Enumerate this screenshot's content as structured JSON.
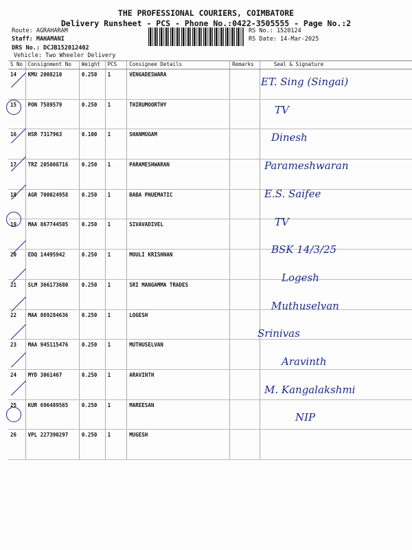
{
  "header": {
    "company": "THE PROFESSIONAL COURIERS, COIMBATORE",
    "subtitle": "Delivery Runsheet - PCS - Phone No.:0422-3505555 - Page No.:2",
    "route": "Route: AGRAHARAM",
    "staff": "Staff: MAHAMANI",
    "drs": "DRS No.: DCJB152012402",
    "vehicle": "Vehicle: Two Wheeler Delivery",
    "rs_no": "RS No.: 1520124",
    "rs_date": "RS Date: 14-Mar-2025"
  },
  "columns": [
    "S No",
    "Consignment No",
    "Weight",
    "PCS",
    "Consignee Details",
    "Remarks",
    "Seal & Signature"
  ],
  "rows": [
    {
      "sno": "14",
      "cn": "KMU 2008210",
      "wt": "0.250",
      "pcs": "1",
      "name": "VENGADESWARA",
      "sig": "ET. Sing (Singai)"
    },
    {
      "sno": "15",
      "cn": "PON 7589579",
      "wt": "0.250",
      "pcs": "1",
      "name": "THIRUMOORTHY",
      "sig": "TV"
    },
    {
      "sno": "16",
      "cn": "HSR 7317963",
      "wt": "0.100",
      "pcs": "1",
      "name": "SHANMUGAM",
      "sig": "Dinesh"
    },
    {
      "sno": "17",
      "cn": "TRZ 205008716",
      "wt": "0.250",
      "pcs": "1",
      "name": "PARAMESHWARAN",
      "sig": "Parameshwaran"
    },
    {
      "sno": "18",
      "cn": "AGR 700024958",
      "wt": "0.250",
      "pcs": "1",
      "name": "BABA PNUEMATIC",
      "sig": "E.S. Saifee"
    },
    {
      "sno": "19",
      "cn": "MAA 867744505",
      "wt": "0.250",
      "pcs": "1",
      "name": "SIVAVADIVEL",
      "sig": "TV"
    },
    {
      "sno": "20",
      "cn": "EDQ 14495942",
      "wt": "0.250",
      "pcs": "1",
      "name": "MOULI KRISHNAN",
      "sig": "BSK 14/3/25"
    },
    {
      "sno": "21",
      "cn": "SLM 366173680",
      "wt": "0.250",
      "pcs": "1",
      "name": "SRI MANGAMMA TRADES",
      "sig": "Logesh"
    },
    {
      "sno": "22",
      "cn": "MAA 869284636",
      "wt": "0.250",
      "pcs": "1",
      "name": "LOGESH",
      "sig": "Muthuselvan"
    },
    {
      "sno": "23",
      "cn": "MAA 945115476",
      "wt": "0.250",
      "pcs": "1",
      "name": "MUTHUSELVAN",
      "sig": "Srinivas"
    },
    {
      "sno": "24",
      "cn": "MYD 3061467",
      "wt": "0.250",
      "pcs": "1",
      "name": "ARAVINTH",
      "sig": "Aravinth"
    },
    {
      "sno": "25",
      "cn": "KUR 696489565",
      "wt": "0.250",
      "pcs": "1",
      "name": "MAREESAN",
      "sig": "M. Kangalakshmi"
    },
    {
      "sno": "26",
      "cn": "VPL 227390297",
      "wt": "0.250",
      "pcs": "1",
      "name": "MUGESH",
      "sig": "NIP"
    }
  ]
}
